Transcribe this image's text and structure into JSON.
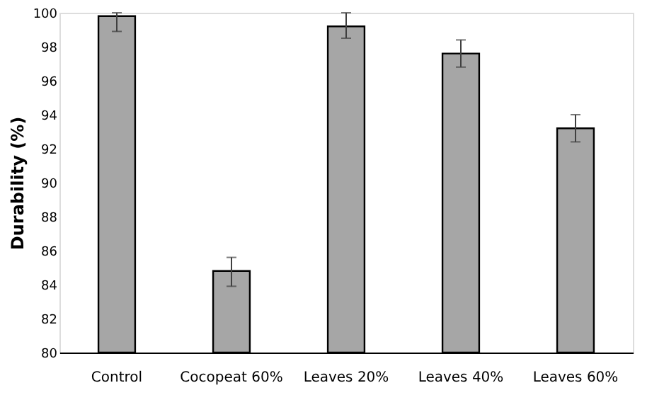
{
  "chart_data": {
    "type": "bar",
    "ylabel": "Durability (%)",
    "categories": [
      "Control",
      "Cocopeat 60%",
      "Leaves 20%",
      "Leaves 40%",
      "Leaves 60%"
    ],
    "series": [
      {
        "color": "#a6a6a6",
        "values": [
          99.8,
          84.8,
          99.2,
          97.6,
          93.2
        ],
        "errors": [
          [
            98.9,
            100
          ],
          [
            83.9,
            85.6
          ],
          [
            98.5,
            100
          ],
          [
            96.8,
            98.4
          ],
          [
            92.4,
            94.0
          ]
        ]
      }
    ],
    "ylim": [
      80,
      100
    ],
    "yticks": [
      80,
      82,
      84,
      86,
      88,
      90,
      92,
      94,
      96,
      98,
      100
    ],
    "grid": false
  }
}
